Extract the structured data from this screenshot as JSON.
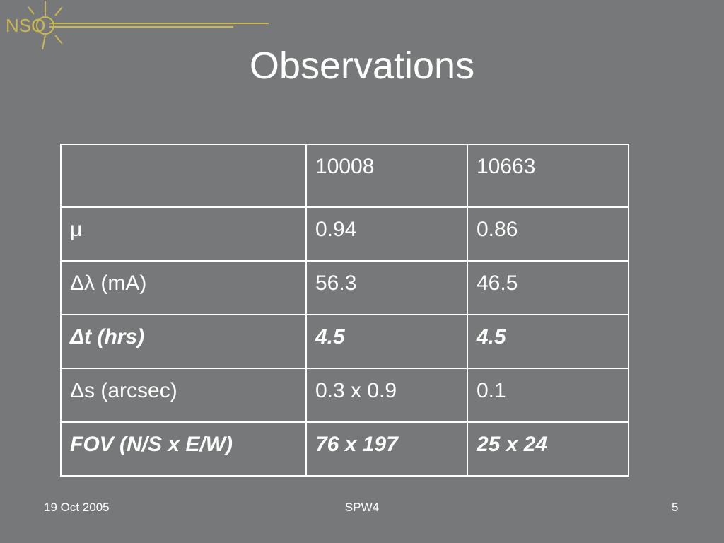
{
  "logo": {
    "text": "NSO"
  },
  "title": "Observations",
  "table": {
    "header": [
      "10008",
      "10663"
    ],
    "rows": [
      {
        "label": "μ",
        "cells": [
          "0.94",
          "0.86"
        ],
        "bold_italic": false
      },
      {
        "label": "Δλ (mA)",
        "cells": [
          "56.3",
          "46.5"
        ],
        "bold_italic": false
      },
      {
        "label": "Δt (hrs)",
        "cells": [
          "4.5",
          "4.5"
        ],
        "bold_italic": true
      },
      {
        "label": "Δs (arcsec)",
        "cells": [
          "0.3 x 0.9",
          "0.1"
        ],
        "bold_italic": false
      },
      {
        "label": "FOV (N/S x E/W)",
        "cells": [
          "76 x 197",
          "25 x 24"
        ],
        "bold_italic": true
      }
    ]
  },
  "footer": {
    "date": "19 Oct 2005",
    "event": "SPW4",
    "page": "5"
  }
}
